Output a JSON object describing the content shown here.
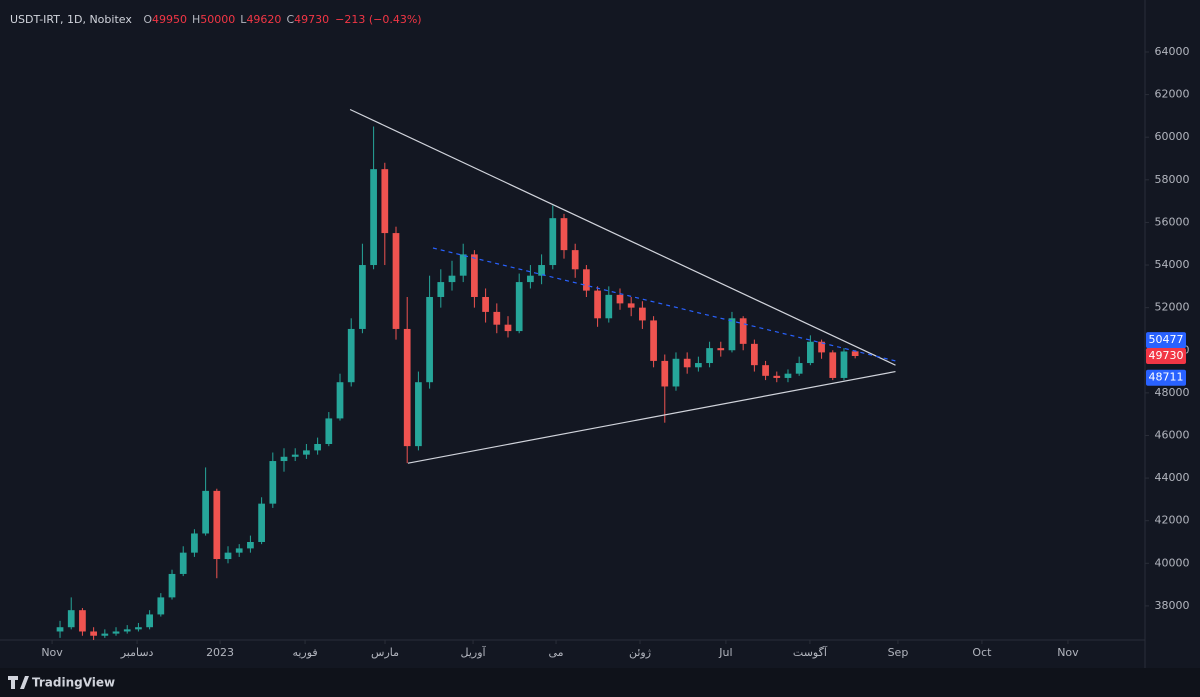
{
  "chart_data": {
    "type": "candlestick",
    "header": {
      "symbol": "USDT-IRT, 1D, Nobitex",
      "fields": [
        {
          "label": "O",
          "value": 49950
        },
        {
          "label": "H",
          "value": 50000
        },
        {
          "label": "L",
          "value": 49620
        },
        {
          "label": "C",
          "value": 49730
        }
      ],
      "change": "−213 (−0.43%)"
    },
    "categories": [
      null,
      null,
      null,
      null,
      null,
      null,
      null,
      null,
      null,
      null,
      null,
      null,
      null,
      null,
      null,
      null,
      null,
      null,
      null,
      null,
      null,
      null,
      null,
      null,
      null,
      null,
      null,
      null,
      null,
      null,
      null,
      null,
      null,
      null,
      null,
      null,
      null,
      null,
      null,
      null,
      null,
      null,
      null,
      null,
      null,
      null,
      null,
      null,
      null,
      null,
      null,
      null,
      null,
      null,
      null,
      null,
      null,
      null,
      null,
      null,
      null,
      null,
      null,
      null,
      null,
      null,
      null,
      null,
      null,
      null,
      null,
      null
    ],
    "open": [
      36800,
      37000,
      37800,
      36800,
      36600,
      36700,
      36800,
      36900,
      37000,
      37600,
      38400,
      39500,
      40500,
      41400,
      43400,
      40200,
      40500,
      40700,
      41000,
      42800,
      44800,
      45000,
      45100,
      45300,
      45600,
      46800,
      48500,
      51000,
      54000,
      58500,
      55500,
      51000,
      45500,
      48500,
      52500,
      53200,
      53500,
      54500,
      52500,
      51800,
      51200,
      50900,
      53200,
      53500,
      54000,
      56200,
      54700,
      53800,
      52800,
      51500,
      52600,
      52200,
      52000,
      51400,
      49500,
      48300,
      49600,
      49200,
      49400,
      50100,
      50000,
      51500,
      50300,
      49300,
      48800,
      48700,
      48900,
      49400,
      50400,
      49900,
      48700,
      49950
    ],
    "high": [
      37300,
      38400,
      37900,
      37000,
      36900,
      37000,
      37100,
      37200,
      37800,
      38600,
      39700,
      40800,
      41600,
      44500,
      43500,
      40800,
      40900,
      41300,
      43100,
      45200,
      45400,
      45400,
      45600,
      45900,
      47100,
      48900,
      51500,
      55000,
      60500,
      58800,
      55800,
      52500,
      49000,
      53500,
      53800,
      54200,
      55000,
      54700,
      52900,
      52200,
      51600,
      53600,
      54000,
      54500,
      56800,
      56400,
      55000,
      54000,
      53000,
      53000,
      52900,
      52500,
      52300,
      51600,
      49800,
      49900,
      49900,
      49700,
      50400,
      50400,
      51800,
      51600,
      50500,
      49500,
      49000,
      49100,
      49700,
      50700,
      50500,
      50000,
      50100,
      50000
    ],
    "low": [
      36500,
      36900,
      36600,
      36400,
      36500,
      36600,
      36700,
      36800,
      36900,
      37500,
      38300,
      39400,
      40300,
      41300,
      39300,
      40000,
      40300,
      40500,
      40900,
      42600,
      44300,
      44800,
      44900,
      45100,
      45500,
      46700,
      48300,
      50800,
      53800,
      54000,
      50500,
      44700,
      45300,
      48200,
      52000,
      52800,
      53200,
      52000,
      51300,
      50800,
      50600,
      50800,
      52900,
      53100,
      53800,
      54300,
      53400,
      52500,
      51100,
      51300,
      51900,
      51600,
      51000,
      49200,
      46600,
      48100,
      48900,
      49000,
      49200,
      49700,
      49900,
      50000,
      49000,
      48600,
      48500,
      48500,
      48800,
      49300,
      49600,
      48600,
      48600,
      49620
    ],
    "close": [
      37000,
      37800,
      36800,
      36600,
      36700,
      36800,
      36900,
      37000,
      37600,
      38400,
      39500,
      40500,
      41400,
      43400,
      40200,
      40500,
      40700,
      41000,
      42800,
      44800,
      45000,
      45100,
      45300,
      45600,
      46800,
      48500,
      51000,
      54000,
      58500,
      55500,
      51000,
      45500,
      48500,
      52500,
      53200,
      53500,
      54500,
      52500,
      51800,
      51200,
      50900,
      53200,
      53500,
      54000,
      56200,
      54700,
      53800,
      52800,
      51500,
      52600,
      52200,
      52000,
      51400,
      49500,
      48300,
      49600,
      49200,
      49400,
      50100,
      50000,
      51500,
      50300,
      49300,
      48800,
      48700,
      48900,
      49400,
      50400,
      49900,
      48700,
      49943,
      49730
    ],
    "up_color": "#26a69a",
    "down_color": "#ef5350",
    "xlim": [
      -5.36,
      96.88
    ],
    "xticks": [
      {
        "value": -0.71,
        "label": "Nov"
      },
      {
        "value": 6.88,
        "label": "دسامبر"
      },
      {
        "value": 14.29,
        "label": "2023"
      },
      {
        "value": 21.88,
        "label": "فوریه"
      },
      {
        "value": 29.02,
        "label": "مارس"
      },
      {
        "value": 36.88,
        "label": "آوریل"
      },
      {
        "value": 44.29,
        "label": "می"
      },
      {
        "value": 51.79,
        "label": "ژوئن"
      },
      {
        "value": 59.46,
        "label": "Jul"
      },
      {
        "value": 66.96,
        "label": "آگوست"
      },
      {
        "value": 74.82,
        "label": "Sep"
      },
      {
        "value": 82.32,
        "label": "Oct"
      },
      {
        "value": 90.0,
        "label": "Nov"
      }
    ],
    "ylim": [
      36400,
      66440
    ],
    "yticks": [
      38000,
      40000,
      42000,
      44000,
      46000,
      48000,
      50000,
      52000,
      54000,
      56000,
      58000,
      60000,
      62000,
      64000
    ],
    "price_labels": [
      {
        "value": 50477,
        "color": "#2962ff"
      },
      {
        "value": 49730,
        "color": "#f23645"
      },
      {
        "value": 48711,
        "color": "#2962ff"
      }
    ],
    "drawings": [
      {
        "points": [
          [
            25.9,
            61300
          ],
          [
            74.6,
            49300
          ]
        ],
        "color": "#d1d4dc",
        "dashed": false
      },
      {
        "points": [
          [
            31.07,
            44700
          ],
          [
            74.6,
            49000
          ]
        ],
        "color": "#d1d4dc",
        "dashed": false
      },
      {
        "points": [
          [
            33.3,
            54800
          ],
          [
            74.6,
            49500
          ]
        ],
        "color": "#2962ff",
        "dashed": true
      }
    ],
    "brand": "TradingView"
  }
}
